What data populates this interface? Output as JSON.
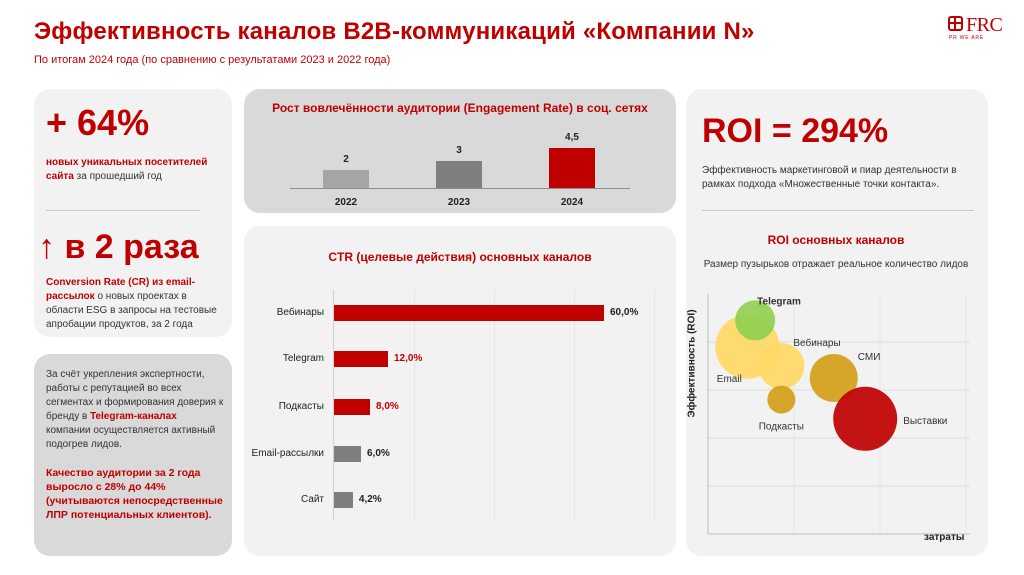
{
  "header": {
    "title": "Эффективность каналов B2B-коммуникаций «Компании N»",
    "subtitle": "По итогам 2024 года (по сравнению с результатами 2023 и 2022 года)"
  },
  "logo": {
    "text": "FRC",
    "tagline": "PR WE ARE"
  },
  "stats": {
    "visitors": {
      "value": "+ 64%",
      "highlight": "новых уникальных посетителей сайта",
      "rest": " за прошедший год"
    },
    "conversion": {
      "value": "↑ в 2 раза",
      "highlight": "Conversion Rate (CR) из email-рассылок",
      "rest": " о новых проектах в области ESG в запросы на тестовые апробации продуктов, за 2 года"
    }
  },
  "note": {
    "part1": "За счёт укрепления экспертности, работы с репутацией во всех сегментах и формирования доверия к бренду в ",
    "highlight": "Telegram-каналах",
    "part2": " компании осуществляется активный подогрев лидов.",
    "bold": "Качество аудитории за 2 года выросло с 28% до 44% (учитываются непосредственные ЛПР потенциальных клиентов)."
  },
  "roi": {
    "value": "ROI = 294%",
    "description": "Эффективность маркетинговой и пиар деятельности в рамках подхода «Множественные точки контакта».",
    "colors": {
      "accent": "#c00000",
      "panel_light": "#f2f2f2",
      "panel_gray": "#d9d9d9"
    }
  },
  "chart_data": [
    {
      "type": "bar",
      "title": "Рост вовлечённости аудитории (Engagement Rate) в соц. сетях",
      "categories": [
        "2022",
        "2023",
        "2024"
      ],
      "values": [
        2,
        3,
        4.5
      ],
      "value_labels": [
        "2",
        "3",
        "4,5"
      ],
      "colors": [
        "#a6a6a6",
        "#7f7f7f",
        "#c00000"
      ],
      "ylim": [
        0,
        5
      ]
    },
    {
      "type": "bar",
      "orientation": "horizontal",
      "title": "CTR (целевые действия) основных каналов",
      "categories": [
        "Вебинары",
        "Telegram",
        "Подкасты",
        "Email-рассылки",
        "Сайт"
      ],
      "values": [
        60.0,
        12.0,
        8.0,
        6.0,
        4.2
      ],
      "value_labels": [
        "60,0%",
        "12,0%",
        "8,0%",
        "6,0%",
        "4,2%"
      ],
      "colors": [
        "#c00000",
        "#c00000",
        "#c00000",
        "#7f7f7f",
        "#7f7f7f"
      ],
      "xlim": [
        0,
        60
      ]
    },
    {
      "type": "scatter",
      "title": "ROI основных каналов",
      "subtitle": "Размер пузырьков отражает реальное количество лидов",
      "xlabel": "затраты",
      "ylabel": "Эффективность (ROI)",
      "xlim": [
        0,
        10
      ],
      "ylim": [
        0,
        10
      ],
      "grid": true,
      "series": [
        {
          "name": "Email",
          "x": 1.5,
          "y": 7.8,
          "size": 1.6,
          "color": "#ffd966"
        },
        {
          "name": "Telegram",
          "x": 1.8,
          "y": 8.9,
          "size": 1.0,
          "color": "#92d050"
        },
        {
          "name": "Вебинары",
          "x": 2.8,
          "y": 7.0,
          "size": 1.15,
          "color": "#ffd966"
        },
        {
          "name": "Подкасты",
          "x": 2.8,
          "y": 5.6,
          "size": 0.7,
          "color": "#d4a017"
        },
        {
          "name": "СМИ",
          "x": 4.8,
          "y": 6.5,
          "size": 1.2,
          "color": "#d4a017"
        },
        {
          "name": "Выставки",
          "x": 6.0,
          "y": 4.8,
          "size": 1.6,
          "color": "#c00000"
        }
      ]
    }
  ]
}
